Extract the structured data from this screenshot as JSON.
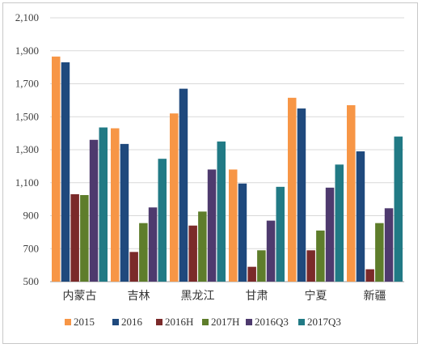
{
  "chart_data": {
    "type": "bar",
    "title": "",
    "xlabel": "",
    "ylabel": "",
    "ylim": [
      500,
      2100
    ],
    "yticks": [
      500,
      700,
      900,
      1100,
      1300,
      1500,
      1700,
      1900,
      2100
    ],
    "ytick_labels": [
      "500",
      "700",
      "900",
      "1,100",
      "1,300",
      "1,500",
      "1,700",
      "1,900",
      "2,100"
    ],
    "grid": "horizontal",
    "legend_position": "bottom",
    "categories": [
      "内蒙古",
      "吉林",
      "黑龙江",
      "甘肃",
      "宁夏",
      "新疆"
    ],
    "series": [
      {
        "name": "2015",
        "color": "#F79646",
        "values": [
          1865,
          1430,
          1520,
          1180,
          1615,
          1570
        ]
      },
      {
        "name": "2016",
        "color": "#1F497D",
        "values": [
          1830,
          1335,
          1670,
          1095,
          1550,
          1290
        ]
      },
      {
        "name": "2016H",
        "color": "#7B2A2A",
        "values": [
          1030,
          680,
          840,
          590,
          690,
          575
        ]
      },
      {
        "name": "2017H",
        "color": "#5E7D2B",
        "values": [
          1025,
          855,
          925,
          690,
          810,
          855
        ]
      },
      {
        "name": "2016Q3",
        "color": "#4E3A6E",
        "values": [
          1360,
          950,
          1180,
          870,
          1070,
          945
        ]
      },
      {
        "name": "2017Q3",
        "color": "#217A85",
        "values": [
          1435,
          1245,
          1350,
          1075,
          1210,
          1380
        ]
      }
    ]
  }
}
